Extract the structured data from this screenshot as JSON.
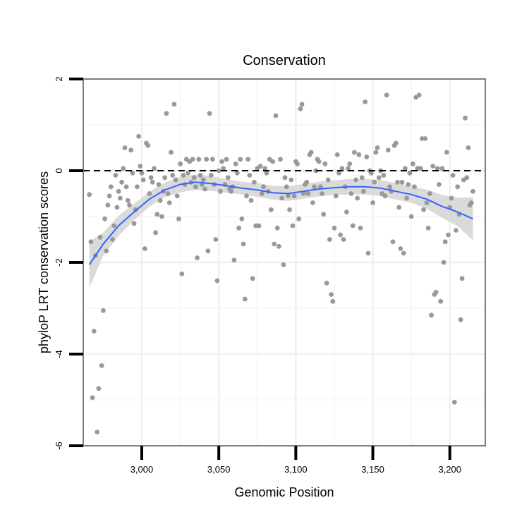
{
  "chart_data": {
    "type": "scatter",
    "title": "Conservation",
    "xlabel": "Genomic Position",
    "ylabel": "phyloP LRT conservation scores",
    "xlim": [
      2962,
      3223
    ],
    "ylim": [
      -6,
      2
    ],
    "x_ticks": [
      3000,
      3050,
      3100,
      3150,
      3200
    ],
    "x_tick_labels": [
      "3,000",
      "3,050",
      "3,100",
      "3,150",
      "3,200"
    ],
    "y_ticks": [
      -6,
      -4,
      -2,
      0,
      2
    ],
    "y_tick_labels": [
      "-6",
      "-4",
      "-2",
      "0",
      "2"
    ],
    "grid": true,
    "reference_line": {
      "y": 0,
      "style": "dashed"
    },
    "colors": {
      "points": "#999999",
      "smooth": "#3366FF",
      "band": "#d3d3d3",
      "frame": "#7f7f7f",
      "grid": "#f0f0f0"
    },
    "points": [
      [
        2966,
        -0.52
      ],
      [
        2967,
        -1.55
      ],
      [
        2968,
        -4.95
      ],
      [
        2969,
        -3.5
      ],
      [
        2970,
        -1.85
      ],
      [
        2971,
        -5.7
      ],
      [
        2972,
        -4.75
      ],
      [
        2973,
        -1.45
      ],
      [
        2974,
        -4.25
      ],
      [
        2975,
        -3.05
      ],
      [
        2976,
        -1.05
      ],
      [
        2977,
        -1.75
      ],
      [
        2978,
        -0.75
      ],
      [
        2979,
        -0.55
      ],
      [
        2980,
        -0.35
      ],
      [
        2981,
        -1.5
      ],
      [
        2982,
        -1.2
      ],
      [
        2983,
        -0.1
      ],
      [
        2984,
        -0.8
      ],
      [
        2985,
        -0.45
      ],
      [
        2986,
        -0.6
      ],
      [
        2987,
        -0.25
      ],
      [
        2988,
        0.05
      ],
      [
        2989,
        0.5
      ],
      [
        2990,
        -0.35
      ],
      [
        2991,
        -0.65
      ],
      [
        2992,
        -0.75
      ],
      [
        2993,
        0.45
      ],
      [
        2994,
        -0.05
      ],
      [
        2995,
        -1.15
      ],
      [
        2996,
        -0.85
      ],
      [
        2997,
        -0.35
      ],
      [
        2998,
        0.75
      ],
      [
        2999,
        0.1
      ],
      [
        3000,
        -0.05
      ],
      [
        3001,
        -0.2
      ],
      [
        3002,
        -1.7
      ],
      [
        3003,
        0.6
      ],
      [
        3004,
        0.55
      ],
      [
        3005,
        -0.5
      ],
      [
        3006,
        -0.15
      ],
      [
        3007,
        -0.25
      ],
      [
        3008,
        0.05
      ],
      [
        3009,
        -1.35
      ],
      [
        3010,
        -0.95
      ],
      [
        3011,
        -0.3
      ],
      [
        3012,
        -0.65
      ],
      [
        3013,
        -1.0
      ],
      [
        3014,
        -0.45
      ],
      [
        3015,
        -0.15
      ],
      [
        3016,
        1.25
      ],
      [
        3017,
        -0.5
      ],
      [
        3018,
        -0.7
      ],
      [
        3019,
        0.4
      ],
      [
        3020,
        -0.1
      ],
      [
        3021,
        1.45
      ],
      [
        3022,
        -0.2
      ],
      [
        3023,
        -0.55
      ],
      [
        3024,
        -1.05
      ],
      [
        3025,
        0.15
      ],
      [
        3026,
        -2.25
      ],
      [
        3027,
        -0.1
      ],
      [
        3028,
        -0.3
      ],
      [
        3029,
        0.25
      ],
      [
        3030,
        -0.05
      ],
      [
        3031,
        0.2
      ],
      [
        3032,
        -0.25
      ],
      [
        3033,
        0.25
      ],
      [
        3034,
        -0.15
      ],
      [
        3035,
        -0.35
      ],
      [
        3036,
        -1.9
      ],
      [
        3037,
        0.25
      ],
      [
        3038,
        -0.1
      ],
      [
        3039,
        -0.3
      ],
      [
        3040,
        -0.2
      ],
      [
        3041,
        -0.4
      ],
      [
        3042,
        0.25
      ],
      [
        3043,
        -1.75
      ],
      [
        3044,
        1.25
      ],
      [
        3045,
        -0.1
      ],
      [
        3046,
        0.25
      ],
      [
        3047,
        -0.3
      ],
      [
        3048,
        -1.5
      ],
      [
        3049,
        -2.4
      ],
      [
        3050,
        0.0
      ],
      [
        3051,
        -0.45
      ],
      [
        3052,
        0.2
      ],
      [
        3053,
        0.05
      ],
      [
        3054,
        -0.3
      ],
      [
        3055,
        0.25
      ],
      [
        3056,
        -0.15
      ],
      [
        3057,
        -0.4
      ],
      [
        3058,
        -0.45
      ],
      [
        3059,
        -0.35
      ],
      [
        3060,
        -1.95
      ],
      [
        3061,
        0.15
      ],
      [
        3062,
        -0.05
      ],
      [
        3063,
        -1.25
      ],
      [
        3064,
        0.25
      ],
      [
        3065,
        -1.05
      ],
      [
        3066,
        -1.6
      ],
      [
        3067,
        -2.8
      ],
      [
        3068,
        -0.55
      ],
      [
        3069,
        0.25
      ],
      [
        3070,
        -0.1
      ],
      [
        3071,
        -0.65
      ],
      [
        3072,
        -2.35
      ],
      [
        3073,
        -0.25
      ],
      [
        3074,
        -1.2
      ],
      [
        3075,
        0.05
      ],
      [
        3076,
        -1.2
      ],
      [
        3077,
        0.1
      ],
      [
        3078,
        -0.5
      ],
      [
        3079,
        -0.35
      ],
      [
        3080,
        0.05
      ],
      [
        3081,
        -0.05
      ],
      [
        3082,
        -0.45
      ],
      [
        3083,
        0.25
      ],
      [
        3084,
        -0.85
      ],
      [
        3085,
        0.2
      ],
      [
        3086,
        -1.6
      ],
      [
        3087,
        1.2
      ],
      [
        3088,
        -1.25
      ],
      [
        3089,
        -1.65
      ],
      [
        3090,
        0.25
      ],
      [
        3091,
        -0.6
      ],
      [
        3092,
        -2.05
      ],
      [
        3093,
        -0.15
      ],
      [
        3094,
        -0.35
      ],
      [
        3095,
        -0.55
      ],
      [
        3096,
        -0.85
      ],
      [
        3097,
        -0.2
      ],
      [
        3098,
        -1.2
      ],
      [
        3099,
        -0.55
      ],
      [
        3100,
        0.2
      ],
      [
        3101,
        0.15
      ],
      [
        3102,
        -1.05
      ],
      [
        3103,
        1.35
      ],
      [
        3104,
        1.45
      ],
      [
        3105,
        -0.5
      ],
      [
        3106,
        -0.3
      ],
      [
        3107,
        -0.25
      ],
      [
        3108,
        -0.5
      ],
      [
        3109,
        0.35
      ],
      [
        3110,
        0.4
      ],
      [
        3111,
        -0.7
      ],
      [
        3112,
        -0.35
      ],
      [
        3113,
        0.0
      ],
      [
        3114,
        0.25
      ],
      [
        3115,
        0.2
      ],
      [
        3116,
        -0.35
      ],
      [
        3117,
        -0.5
      ],
      [
        3118,
        -0.95
      ],
      [
        3119,
        0.15
      ],
      [
        3120,
        -2.45
      ],
      [
        3121,
        -0.2
      ],
      [
        3122,
        -1.5
      ],
      [
        3123,
        -2.7
      ],
      [
        3124,
        -2.85
      ],
      [
        3125,
        -1.25
      ],
      [
        3126,
        -0.55
      ],
      [
        3127,
        0.35
      ],
      [
        3128,
        -0.05
      ],
      [
        3129,
        -1.4
      ],
      [
        3130,
        0.05
      ],
      [
        3131,
        -1.5
      ],
      [
        3132,
        -0.35
      ],
      [
        3133,
        -0.9
      ],
      [
        3134,
        0.05
      ],
      [
        3135,
        0.15
      ],
      [
        3136,
        -0.5
      ],
      [
        3137,
        -1.2
      ],
      [
        3138,
        0.4
      ],
      [
        3139,
        -0.2
      ],
      [
        3140,
        -0.6
      ],
      [
        3141,
        0.35
      ],
      [
        3142,
        -1.25
      ],
      [
        3143,
        -0.15
      ],
      [
        3144,
        -0.45
      ],
      [
        3145,
        1.5
      ],
      [
        3146,
        0.3
      ],
      [
        3147,
        -1.8
      ],
      [
        3148,
        0.0
      ],
      [
        3149,
        -0.05
      ],
      [
        3150,
        -0.7
      ],
      [
        3151,
        -0.25
      ],
      [
        3152,
        0.4
      ],
      [
        3153,
        0.5
      ],
      [
        3154,
        -0.15
      ],
      [
        3155,
        0.0
      ],
      [
        3156,
        -0.5
      ],
      [
        3157,
        -0.1
      ],
      [
        3158,
        -0.55
      ],
      [
        3159,
        1.65
      ],
      [
        3160,
        0.45
      ],
      [
        3161,
        -0.35
      ],
      [
        3162,
        -0.45
      ],
      [
        3163,
        -1.55
      ],
      [
        3164,
        0.55
      ],
      [
        3165,
        0.6
      ],
      [
        3166,
        -0.25
      ],
      [
        3167,
        -0.8
      ],
      [
        3168,
        -1.7
      ],
      [
        3169,
        -0.25
      ],
      [
        3170,
        -1.8
      ],
      [
        3171,
        0.05
      ],
      [
        3172,
        -0.6
      ],
      [
        3173,
        -0.3
      ],
      [
        3174,
        -0.05
      ],
      [
        3175,
        -1.0
      ],
      [
        3176,
        0.15
      ],
      [
        3177,
        -0.35
      ],
      [
        3178,
        1.6
      ],
      [
        3179,
        0.05
      ],
      [
        3180,
        1.65
      ],
      [
        3181,
        0.05
      ],
      [
        3182,
        0.7
      ],
      [
        3183,
        -0.85
      ],
      [
        3184,
        0.7
      ],
      [
        3185,
        -0.7
      ],
      [
        3186,
        -1.25
      ],
      [
        3187,
        -0.5
      ],
      [
        3188,
        -3.15
      ],
      [
        3189,
        0.1
      ],
      [
        3190,
        -2.7
      ],
      [
        3191,
        -2.65
      ],
      [
        3192,
        0.05
      ],
      [
        3193,
        -0.3
      ],
      [
        3194,
        -2.85
      ],
      [
        3195,
        0.05
      ],
      [
        3196,
        -2.0
      ],
      [
        3197,
        -1.55
      ],
      [
        3198,
        0.4
      ],
      [
        3199,
        -1.4
      ],
      [
        3200,
        -0.8
      ],
      [
        3201,
        -0.6
      ],
      [
        3202,
        -0.1
      ],
      [
        3203,
        -5.05
      ],
      [
        3204,
        -1.3
      ],
      [
        3205,
        -0.35
      ],
      [
        3206,
        -0.95
      ],
      [
        3207,
        -3.25
      ],
      [
        3208,
        -2.35
      ],
      [
        3209,
        -0.2
      ],
      [
        3210,
        1.15
      ],
      [
        3211,
        -0.15
      ],
      [
        3212,
        0.5
      ],
      [
        3213,
        -0.75
      ],
      [
        3214,
        -0.7
      ],
      [
        3215,
        -0.45
      ]
    ],
    "smooth": {
      "x": [
        2966,
        2975,
        2985,
        2995,
        3005,
        3015,
        3025,
        3035,
        3045,
        3055,
        3065,
        3075,
        3085,
        3095,
        3105,
        3115,
        3125,
        3135,
        3145,
        3155,
        3165,
        3175,
        3185,
        3195,
        3205,
        3215
      ],
      "y": [
        -2.05,
        -1.6,
        -1.2,
        -0.9,
        -0.62,
        -0.42,
        -0.3,
        -0.25,
        -0.28,
        -0.33,
        -0.38,
        -0.42,
        -0.48,
        -0.5,
        -0.45,
        -0.4,
        -0.37,
        -0.35,
        -0.35,
        -0.38,
        -0.45,
        -0.52,
        -0.62,
        -0.78,
        -0.9,
        -1.05
      ],
      "lower": [
        -2.55,
        -1.85,
        -1.42,
        -1.08,
        -0.78,
        -0.58,
        -0.47,
        -0.42,
        -0.44,
        -0.48,
        -0.52,
        -0.57,
        -0.63,
        -0.66,
        -0.61,
        -0.56,
        -0.53,
        -0.52,
        -0.52,
        -0.56,
        -0.63,
        -0.7,
        -0.83,
        -1.03,
        -1.21,
        -1.52
      ],
      "upper": [
        -1.55,
        -1.35,
        -0.98,
        -0.72,
        -0.46,
        -0.26,
        -0.13,
        -0.08,
        -0.12,
        -0.18,
        -0.24,
        -0.27,
        -0.33,
        -0.34,
        -0.29,
        -0.24,
        -0.21,
        -0.18,
        -0.18,
        -0.2,
        -0.27,
        -0.34,
        -0.41,
        -0.53,
        -0.59,
        -0.58
      ]
    }
  }
}
